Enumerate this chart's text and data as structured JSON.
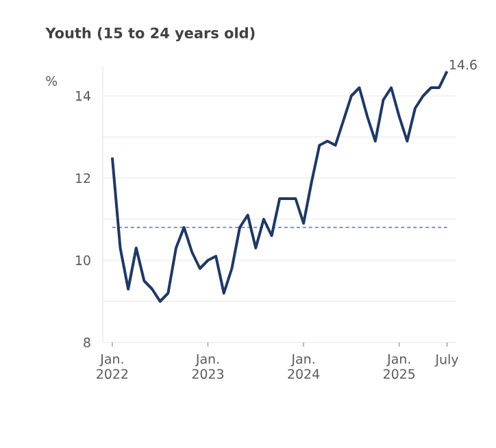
{
  "chart_data": {
    "type": "line",
    "title": "Youth (15 to 24 years old)",
    "ylabel": "%",
    "x": [
      "2022-01",
      "2022-02",
      "2022-03",
      "2022-04",
      "2022-05",
      "2022-06",
      "2022-07",
      "2022-08",
      "2022-09",
      "2022-10",
      "2022-11",
      "2022-12",
      "2023-01",
      "2023-02",
      "2023-03",
      "2023-04",
      "2023-05",
      "2023-06",
      "2023-07",
      "2023-08",
      "2023-09",
      "2023-10",
      "2023-11",
      "2023-12",
      "2024-01",
      "2024-02",
      "2024-03",
      "2024-04",
      "2024-05",
      "2024-06",
      "2024-07",
      "2024-08",
      "2024-09",
      "2024-10",
      "2024-11",
      "2024-12",
      "2025-01",
      "2025-02",
      "2025-03",
      "2025-04",
      "2025-05",
      "2025-06",
      "2025-07"
    ],
    "series": [
      {
        "color": "#1f3864",
        "values": [
          12.5,
          10.3,
          9.3,
          10.3,
          9.5,
          9.3,
          9.0,
          9.2,
          10.3,
          10.8,
          10.2,
          9.8,
          10.0,
          10.1,
          9.2,
          9.8,
          10.8,
          11.1,
          10.3,
          11.0,
          10.6,
          11.5,
          11.5,
          11.5,
          10.9,
          11.9,
          12.8,
          12.9,
          12.8,
          13.4,
          14.0,
          14.2,
          13.5,
          12.9,
          13.9,
          14.2,
          13.5,
          12.9,
          13.7,
          14.0,
          14.2,
          14.2,
          14.6
        ],
        "value_labels": [
          null,
          null,
          null,
          null,
          null,
          null,
          null,
          null,
          null,
          null,
          null,
          null,
          null,
          null,
          null,
          null,
          null,
          null,
          null,
          null,
          null,
          null,
          null,
          null,
          null,
          null,
          null,
          null,
          null,
          null,
          null,
          null,
          null,
          null,
          null,
          null,
          null,
          null,
          null,
          null,
          null,
          null,
          "14.6"
        ]
      }
    ],
    "xlim": [
      "2021-11-26",
      "2025-08-06"
    ],
    "ylim": [
      8,
      14.7
    ],
    "xticks": [
      {
        "value": "2022-01",
        "label": "Jan. 2022"
      },
      {
        "value": "2023-01",
        "label": "Jan. 2023"
      },
      {
        "value": "2024-01",
        "label": "Jan. 2024"
      },
      {
        "value": "2025-01",
        "label": "Jan. 2025"
      },
      {
        "value": "2025-07",
        "label": "July"
      }
    ],
    "yticks": [
      8,
      {
        "value": 9,
        "label": null
      },
      10,
      {
        "value": 11,
        "label": null
      },
      12,
      {
        "value": 13,
        "label": null
      },
      14
    ],
    "grid": "y",
    "ref_lines": [
      {
        "axis": "y",
        "value": 10.8,
        "color": "#7b96c8",
        "line_style": "dashed"
      }
    ]
  }
}
